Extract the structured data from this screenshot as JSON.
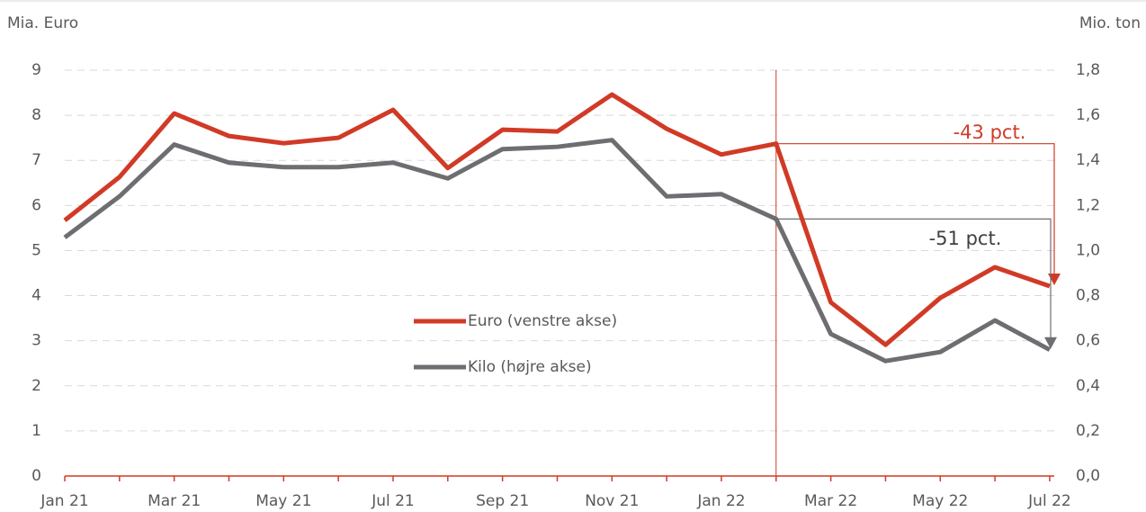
{
  "chart_data": {
    "type": "line",
    "y_label": "Mia. Euro",
    "y2_label": "Mio. ton",
    "categories": [
      "Jan 21",
      null,
      "Mar 21",
      null,
      "May 21",
      null,
      "Jul 21",
      null,
      "Sep 21",
      null,
      "Nov 21",
      null,
      "Jan 22",
      null,
      "Mar 22",
      null,
      "May 22",
      null,
      "Jul 22"
    ],
    "series": [
      {
        "name": "Euro (venstre akse)",
        "color": "#d13a26",
        "values": [
          5.67,
          6.63,
          8.04,
          7.54,
          7.38,
          7.5,
          8.12,
          6.83,
          7.68,
          7.64,
          8.46,
          7.7,
          7.13,
          7.37,
          3.85,
          2.91,
          3.95,
          4.63,
          4.21
        ]
      },
      {
        "name": "Kilo (højre akse)",
        "color": "#6d6e71",
        "axis": "y2",
        "values": [
          1.058,
          1.24,
          1.47,
          1.39,
          1.37,
          1.37,
          1.39,
          1.32,
          1.45,
          1.46,
          1.49,
          1.24,
          1.25,
          1.14,
          0.63,
          0.51,
          0.55,
          0.69,
          0.56
        ]
      }
    ],
    "ylim": [
      0,
      9
    ],
    "yticks": [
      0,
      1,
      2,
      3,
      4,
      5,
      6,
      7,
      8,
      9
    ],
    "y2lim": [
      0,
      1.8
    ],
    "y2ticks": [
      {
        "value": 0,
        "label": "0,0"
      },
      {
        "value": 0.2,
        "label": "0,2"
      },
      {
        "value": 0.4,
        "label": "0,4"
      },
      {
        "value": 0.6,
        "label": "0,6"
      },
      {
        "value": 0.8,
        "label": "0,8"
      },
      {
        "value": 1.0,
        "label": "1,0"
      },
      {
        "value": 1.2,
        "label": "1,2"
      },
      {
        "value": 1.4,
        "label": "1,4"
      },
      {
        "value": 1.6,
        "label": "1,6"
      },
      {
        "value": 1.8,
        "label": "1,8"
      }
    ],
    "grid": true,
    "annotations": [
      "-43 pct.",
      "-51 pct."
    ]
  }
}
